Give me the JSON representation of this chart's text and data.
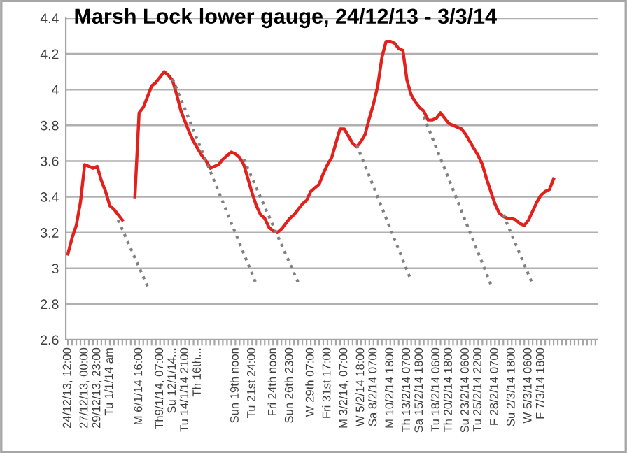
{
  "chart_data": {
    "type": "line",
    "title": "Marsh Lock lower gauge, 24/12/13 - 3/3/14",
    "categories": [
      "24/12/13, 12:00",
      null,
      null,
      null,
      "27/12/13, 00:00",
      null,
      null,
      "29/12/13, 23:00",
      null,
      null,
      "Tu 1/1/14 am",
      null,
      null,
      null,
      null,
      null,
      null,
      "M 6/1/14 16:00",
      null,
      null,
      null,
      null,
      "Th9/1/14, 07:00",
      null,
      null,
      "Su 12/1/14...",
      null,
      null,
      "Tu 14/1/14 2100",
      null,
      null,
      "Th 16th...",
      null,
      null,
      null,
      null,
      null,
      null,
      null,
      null,
      "Sun 19th noon",
      null,
      null,
      null,
      "Tu 21st 24:00",
      null,
      null,
      null,
      null,
      "Fri 24th noon",
      null,
      null,
      null,
      "Sun 26th 2300",
      null,
      null,
      null,
      null,
      "W 29th 07:00",
      null,
      null,
      null,
      "Fri 31st 17:00",
      null,
      null,
      null,
      "M 3/2/14, 07:00",
      null,
      null,
      null,
      "W 5/2/14 18:00",
      null,
      null,
      "Sa 8/2/14 0700",
      null,
      null,
      null,
      "M 10/2/14 1800",
      null,
      null,
      null,
      "Th 13/2/14 0700",
      null,
      null,
      "Sa 15/2/14 1800",
      null,
      null,
      null,
      "Tu 18/2/14 0600",
      null,
      null,
      "Th 20/2/14 1800",
      null,
      null,
      null,
      "Su 23/2/14 0600",
      null,
      null,
      "Tu 25/2/14 2200",
      null,
      null,
      null,
      "F 28/2/14 0700",
      null,
      null,
      null,
      "Su 2/3/14 1800",
      null,
      null,
      null,
      "W 5/3/14 0600",
      null,
      null,
      "F 7/3/14 1800",
      null,
      null,
      null,
      null,
      null,
      null,
      null,
      null,
      null,
      null,
      null,
      null,
      null
    ],
    "series": [
      {
        "color": "#e3211c",
        "line_style": "solid",
        "values": [
          3.08,
          3.17,
          3.24,
          3.37,
          3.58,
          3.57,
          3.56,
          3.57,
          3.49,
          3.43,
          3.35,
          3.33,
          3.3,
          3.27,
          null,
          null,
          3.4,
          3.87,
          3.9,
          3.96,
          4.02,
          4.04,
          4.07,
          4.1,
          4.08,
          4.05,
          3.97,
          3.88,
          3.82,
          3.76,
          3.71,
          3.67,
          3.63,
          3.6,
          3.56,
          3.57,
          3.58,
          3.61,
          3.63,
          3.65,
          3.64,
          3.62,
          3.58,
          3.5,
          3.42,
          3.35,
          3.3,
          3.28,
          3.23,
          3.21,
          3.2,
          3.22,
          3.25,
          3.28,
          3.3,
          3.33,
          3.36,
          3.38,
          3.43,
          3.45,
          3.47,
          3.53,
          3.58,
          3.62,
          3.7,
          3.78,
          3.78,
          3.74,
          3.7,
          3.68,
          3.71,
          3.75,
          3.84,
          3.92,
          4.02,
          4.18,
          4.27,
          4.27,
          4.26,
          4.23,
          4.22,
          4.05,
          3.97,
          3.93,
          3.9,
          3.88,
          3.83,
          3.83,
          3.84,
          3.87,
          3.84,
          3.81,
          3.8,
          3.79,
          3.78,
          3.75,
          3.71,
          3.67,
          3.63,
          3.58,
          3.5,
          3.43,
          3.36,
          3.31,
          3.29,
          3.28,
          3.28,
          3.27,
          3.25,
          3.24,
          3.27,
          3.32,
          3.37,
          3.41,
          3.43,
          3.44,
          3.5,
          null,
          null,
          null,
          null,
          null,
          null,
          null,
          null,
          null,
          null
        ]
      },
      {
        "color": "#808080",
        "line_style": "dotted",
        "values": [
          null,
          null,
          null,
          null,
          null,
          null,
          null,
          null,
          null,
          null,
          null,
          null,
          3.27,
          null,
          null,
          null,
          null,
          null,
          null,
          2.9,
          null,
          null,
          null,
          null,
          null,
          null,
          null,
          null,
          null,
          null,
          null,
          null,
          null,
          null,
          null,
          null,
          null,
          null,
          null,
          null,
          null,
          null,
          null,
          null,
          null,
          null,
          null,
          null,
          null,
          null,
          null,
          null,
          null,
          null,
          null,
          null,
          null,
          null,
          null,
          null,
          null,
          null,
          null,
          null,
          null,
          null,
          null,
          null,
          null,
          null,
          null,
          null,
          null,
          null,
          null,
          null,
          null,
          null,
          null,
          null,
          null,
          null,
          null,
          null,
          null,
          null,
          null,
          null,
          null,
          null,
          null,
          null,
          null,
          null,
          null,
          null,
          null,
          null,
          null,
          null,
          null,
          null,
          null,
          null,
          null,
          null,
          null,
          null,
          null,
          null,
          null,
          null,
          null,
          null,
          null,
          null,
          null,
          null,
          null,
          null,
          null,
          null,
          null,
          null,
          null,
          null,
          null
        ]
      },
      {
        "color": "#808080",
        "line_style": "dotted",
        "values": [
          null,
          null,
          null,
          null,
          null,
          null,
          null,
          null,
          null,
          null,
          null,
          null,
          null,
          null,
          null,
          null,
          null,
          null,
          null,
          null,
          null,
          null,
          null,
          null,
          null,
          4.06,
          null,
          null,
          null,
          null,
          null,
          null,
          null,
          null,
          null,
          null,
          null,
          null,
          null,
          null,
          null,
          null,
          null,
          null,
          null,
          2.91,
          null,
          null,
          null,
          null,
          null,
          null,
          null,
          null,
          null,
          null,
          null,
          null,
          null,
          null,
          null,
          null,
          null,
          null,
          null,
          null,
          null,
          null,
          null,
          null,
          null,
          null,
          null,
          null,
          null,
          null,
          null,
          null,
          null,
          null,
          null,
          null,
          null,
          null,
          null,
          null,
          null,
          null,
          null,
          null,
          null,
          null,
          null,
          null,
          null,
          null,
          null,
          null,
          null,
          null,
          null,
          null,
          null,
          null,
          null,
          null,
          null,
          null,
          null,
          null,
          null,
          null,
          null,
          null,
          null,
          null,
          null,
          null,
          null,
          null,
          null,
          null,
          null,
          null,
          null,
          null,
          null
        ]
      },
      {
        "color": "#808080",
        "line_style": "dotted",
        "values": [
          null,
          null,
          null,
          null,
          null,
          null,
          null,
          null,
          null,
          null,
          null,
          null,
          null,
          null,
          null,
          null,
          null,
          null,
          null,
          null,
          null,
          null,
          null,
          null,
          null,
          null,
          null,
          null,
          null,
          null,
          null,
          null,
          null,
          null,
          null,
          null,
          null,
          null,
          null,
          null,
          null,
          null,
          3.61,
          null,
          null,
          null,
          null,
          null,
          null,
          null,
          null,
          null,
          null,
          null,
          null,
          2.92,
          null,
          null,
          null,
          null,
          null,
          null,
          null,
          null,
          null,
          null,
          null,
          null,
          null,
          null,
          null,
          null,
          null,
          null,
          null,
          null,
          null,
          null,
          null,
          null,
          null,
          null,
          null,
          null,
          null,
          null,
          null,
          null,
          null,
          null,
          null,
          null,
          null,
          null,
          null,
          null,
          null,
          null,
          null,
          null,
          null,
          null,
          null,
          null,
          null,
          null,
          null,
          null,
          null,
          null,
          null,
          null,
          null,
          null,
          null,
          null,
          null,
          null,
          null,
          null,
          null,
          null,
          null,
          null,
          null,
          null,
          null
        ]
      },
      {
        "color": "#808080",
        "line_style": "dotted",
        "values": [
          null,
          null,
          null,
          null,
          null,
          null,
          null,
          null,
          null,
          null,
          null,
          null,
          null,
          null,
          null,
          null,
          null,
          null,
          null,
          null,
          null,
          null,
          null,
          null,
          null,
          null,
          null,
          null,
          null,
          null,
          null,
          null,
          null,
          null,
          null,
          null,
          null,
          null,
          null,
          null,
          null,
          null,
          null,
          null,
          null,
          null,
          null,
          null,
          null,
          null,
          null,
          null,
          null,
          null,
          null,
          null,
          null,
          null,
          null,
          null,
          null,
          null,
          null,
          null,
          null,
          null,
          null,
          null,
          null,
          3.69,
          null,
          null,
          null,
          null,
          null,
          null,
          null,
          null,
          null,
          null,
          null,
          null,
          2.93,
          null,
          null,
          null,
          null,
          null,
          null,
          null,
          null,
          null,
          null,
          null,
          null,
          null,
          null,
          null,
          null,
          null,
          null,
          null,
          null,
          null,
          null,
          null,
          null,
          null,
          null,
          null,
          null,
          null,
          null,
          null,
          null,
          null,
          null,
          null,
          null,
          null,
          null,
          null,
          null,
          null,
          null,
          null,
          null
        ]
      },
      {
        "color": "#808080",
        "line_style": "dotted",
        "values": [
          null,
          null,
          null,
          null,
          null,
          null,
          null,
          null,
          null,
          null,
          null,
          null,
          null,
          null,
          null,
          null,
          null,
          null,
          null,
          null,
          null,
          null,
          null,
          null,
          null,
          null,
          null,
          null,
          null,
          null,
          null,
          null,
          null,
          null,
          null,
          null,
          null,
          null,
          null,
          null,
          null,
          null,
          null,
          null,
          null,
          null,
          null,
          null,
          null,
          null,
          null,
          null,
          null,
          null,
          null,
          null,
          null,
          null,
          null,
          null,
          null,
          null,
          null,
          null,
          null,
          null,
          null,
          null,
          null,
          null,
          null,
          null,
          null,
          null,
          null,
          null,
          null,
          null,
          null,
          null,
          null,
          null,
          null,
          null,
          null,
          3.85,
          null,
          null,
          null,
          null,
          null,
          null,
          null,
          null,
          null,
          null,
          null,
          null,
          null,
          null,
          null,
          2.91,
          null,
          null,
          null,
          null,
          null,
          null,
          null,
          null,
          null,
          null,
          null,
          null,
          null,
          null,
          null,
          null,
          null,
          null,
          null,
          null,
          null,
          null,
          null,
          null,
          null
        ]
      },
      {
        "color": "#808080",
        "line_style": "dotted",
        "values": [
          null,
          null,
          null,
          null,
          null,
          null,
          null,
          null,
          null,
          null,
          null,
          null,
          null,
          null,
          null,
          null,
          null,
          null,
          null,
          null,
          null,
          null,
          null,
          null,
          null,
          null,
          null,
          null,
          null,
          null,
          null,
          null,
          null,
          null,
          null,
          null,
          null,
          null,
          null,
          null,
          null,
          null,
          null,
          null,
          null,
          null,
          null,
          null,
          null,
          null,
          null,
          null,
          null,
          null,
          null,
          null,
          null,
          null,
          null,
          null,
          null,
          null,
          null,
          null,
          null,
          null,
          null,
          null,
          null,
          null,
          null,
          null,
          null,
          null,
          null,
          null,
          null,
          null,
          null,
          null,
          null,
          null,
          null,
          null,
          null,
          null,
          null,
          null,
          null,
          null,
          null,
          null,
          null,
          null,
          null,
          null,
          null,
          null,
          null,
          null,
          null,
          null,
          null,
          null,
          3.3,
          null,
          null,
          null,
          null,
          null,
          null,
          2.91,
          null,
          null,
          null,
          null,
          null,
          null,
          null,
          null,
          null,
          null,
          null,
          null,
          null,
          null,
          null
        ]
      }
    ],
    "ylim": [
      2.6,
      4.4
    ],
    "yticks": [
      2.6,
      2.8,
      3,
      3.2,
      3.4,
      3.6,
      3.8,
      4,
      4.2,
      4.4
    ],
    "grid": "y",
    "legend": false,
    "marker": "none"
  }
}
